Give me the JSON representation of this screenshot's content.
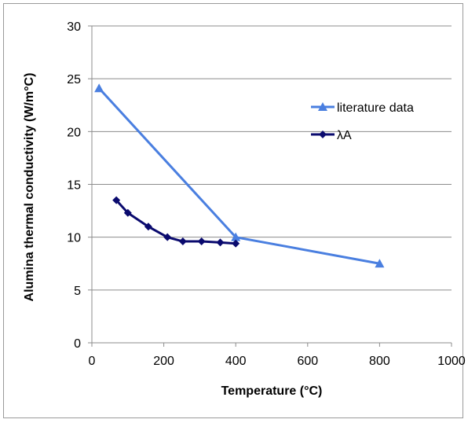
{
  "chart_data": {
    "type": "line",
    "xlabel": "Temperature (°C)",
    "ylabel": "Alumina thermal conductivity (W/m°C)",
    "xlim": [
      0,
      1000
    ],
    "ylim": [
      0,
      30
    ],
    "xticks": [
      "0",
      "200",
      "400",
      "600",
      "800",
      "1000"
    ],
    "yticks": [
      "0",
      "5",
      "10",
      "15",
      "20",
      "25",
      "30"
    ],
    "grid": "horizontal",
    "legend_position": "right",
    "series": [
      {
        "name": "literature data",
        "color": "#4a7fe0",
        "marker": "triangle",
        "x": [
          20,
          400,
          800
        ],
        "y": [
          24.1,
          10.0,
          7.5
        ]
      },
      {
        "name": "λA",
        "color": "#0a0a6e",
        "marker": "diamond",
        "x": [
          68,
          100,
          157,
          210,
          253,
          305,
          357,
          400
        ],
        "y": [
          13.5,
          12.3,
          11.0,
          10.0,
          9.6,
          9.6,
          9.5,
          9.4
        ]
      }
    ]
  }
}
